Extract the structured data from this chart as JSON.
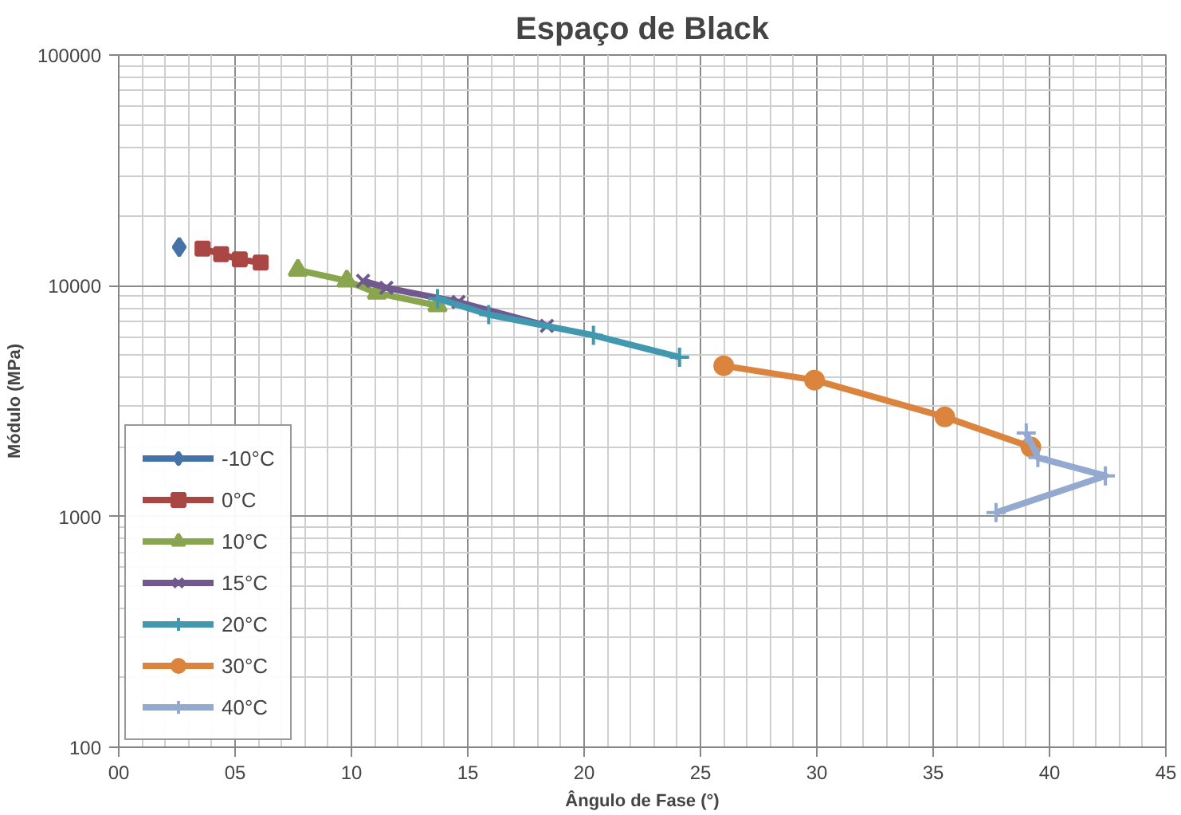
{
  "chart_data": {
    "type": "line",
    "title": "Espaço de Black",
    "xlabel": "Ângulo de Fase (°)",
    "ylabel": "Módulo (MPa)",
    "log": "y",
    "grid": true,
    "legend": "bottom left",
    "xlim": [
      0,
      45
    ],
    "xticks": [
      {
        "value": 0,
        "label": "00"
      },
      {
        "value": 5,
        "label": "05"
      },
      10,
      15,
      20,
      25,
      30,
      35,
      40,
      45
    ],
    "ylim": [
      100,
      100000
    ],
    "yticks": [
      100,
      1000,
      10000,
      100000
    ],
    "series": [
      {
        "name": "-10°C",
        "color": "#4572a7",
        "marker": "diamond",
        "x": [
          2.6
        ],
        "values": [
          14700
        ]
      },
      {
        "name": "0°C",
        "color": "#aa4643",
        "marker": "square",
        "x": [
          3.6,
          4.4,
          5.2,
          6.1
        ],
        "values": [
          14500,
          13700,
          13000,
          12600
        ]
      },
      {
        "name": "10°C",
        "color": "#89a54e",
        "marker": "triangle",
        "x": [
          7.7,
          9.8,
          11.1,
          13.7
        ],
        "values": [
          11700,
          10500,
          9300,
          8200
        ]
      },
      {
        "name": "15°C",
        "color": "#71588f",
        "marker": "x",
        "x": [
          10.5,
          11.5,
          14.6,
          18.4
        ],
        "values": [
          10500,
          9800,
          8500,
          6700
        ]
      },
      {
        "name": "20°C",
        "color": "#4198af",
        "marker": "cross",
        "x": [
          13.7,
          15.9,
          20.4,
          24.1
        ],
        "values": [
          8800,
          7500,
          6100,
          4900
        ]
      },
      {
        "name": "30°C",
        "color": "#db843d",
        "marker": "circle",
        "x": [
          26.0,
          29.9,
          35.5,
          39.2
        ],
        "values": [
          4500,
          3900,
          2700,
          2000
        ]
      },
      {
        "name": "40°C",
        "color": "#93a9cf",
        "marker": "cross",
        "x": [
          39.0,
          39.5,
          42.4,
          37.7
        ],
        "values": [
          2300,
          1800,
          1500,
          1040
        ]
      }
    ]
  }
}
